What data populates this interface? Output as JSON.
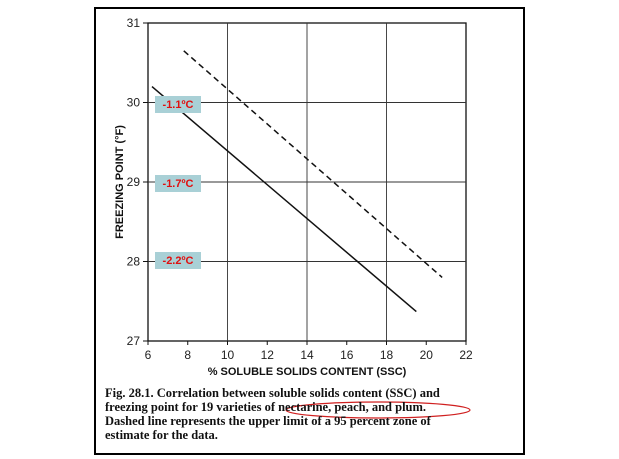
{
  "chart_data": {
    "type": "line",
    "xlabel": "% SOLUBLE SOLIDS CONTENT (SSC)",
    "ylabel": "FREEZING POINT (°F)",
    "xlim": [
      6,
      22
    ],
    "ylim": [
      27,
      31
    ],
    "xticks": [
      "6",
      "8",
      "10",
      "12",
      "14",
      "16",
      "18",
      "20",
      "22"
    ],
    "yticks": [
      "27",
      "28",
      "29",
      "30",
      "31"
    ],
    "grid": true,
    "series": [
      {
        "style": "solid",
        "x": [
          6.2,
          19.5
        ],
        "y": [
          30.2,
          27.37
        ]
      },
      {
        "style": "dashed",
        "x": [
          7.8,
          20.8
        ],
        "y": [
          30.65,
          27.8
        ]
      }
    ],
    "annotations": [
      "-1.1ºC",
      "-1.7ºC",
      "-2.2ºC"
    ]
  },
  "caption": {
    "line1": "Fig. 28.1. Correlation between soluble solids content (SSC) and",
    "line2": "freezing point for 19 varieties of nectarine, peach, and plum.",
    "line3": "Dashed line represents the upper limit of a 95 percent zone of",
    "line4": "estimate for the data."
  }
}
